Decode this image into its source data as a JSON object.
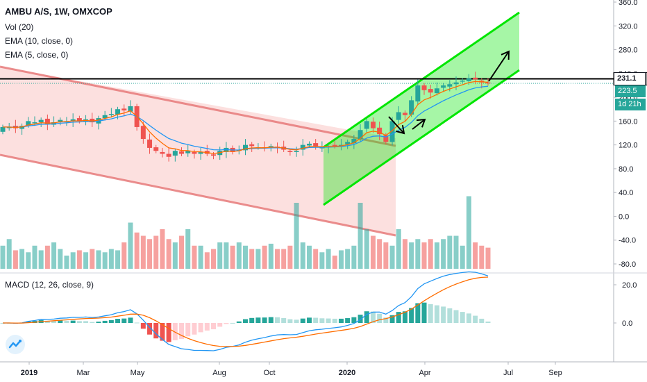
{
  "legend": {
    "title": "AMBU A/S, 1W, OMXCOP",
    "vol": "Vol (20)",
    "ema10": "EMA (10, close, 0)",
    "ema5": "EMA (5, close, 0)",
    "macd": "MACD (12, 26, close, 9)"
  },
  "badges": {
    "last": "231.1",
    "close": "223.5",
    "timer": "1d 21h"
  },
  "colors": {
    "up": "#26a69a",
    "down": "#ef5350",
    "ema_fast": "#ff6d00",
    "ema_slow": "#2196f3",
    "channel_up": "#00e600",
    "channel_down": "#e57373"
  },
  "chart_data": {
    "type": "line",
    "symbol": "AMBU A/S",
    "interval": "1W",
    "exchange": "OMXCOP",
    "price_axis_ticks": [
      "360.0",
      "320.0",
      "280.0",
      "240.0",
      "200.0",
      "160.0",
      "120.0",
      "80.0",
      "40.0",
      "0.0",
      "-40.0",
      "-80.0"
    ],
    "macd_axis_ticks": [
      "20.0",
      "0.0"
    ],
    "x_ticks": [
      "2019",
      "Mar",
      "May",
      "Aug",
      "Oct",
      "2020",
      "Apr",
      "Jul",
      "Sep"
    ],
    "horizontal_line": 231.1,
    "last_close": 223.5,
    "price_range": [
      -90,
      365
    ],
    "weekly_close": [
      150,
      150,
      148,
      152,
      160,
      158,
      162,
      155,
      158,
      162,
      160,
      163,
      160,
      163,
      158,
      165,
      170,
      172,
      180,
      178,
      185,
      150,
      130,
      115,
      110,
      105,
      100,
      110,
      105,
      110,
      105,
      108,
      105,
      102,
      110,
      115,
      108,
      112,
      120,
      118,
      116,
      115,
      118,
      116,
      112,
      108,
      110,
      120,
      122,
      118,
      116,
      118,
      118,
      120,
      125,
      130,
      145,
      160,
      148,
      138,
      125,
      160,
      175,
      170,
      195,
      220,
      212,
      208,
      215,
      220,
      222,
      225,
      228,
      232,
      230,
      225,
      223.5
    ],
    "weekly_volume": [
      0.35,
      0.45,
      0.28,
      0.3,
      0.25,
      0.35,
      0.28,
      0.35,
      0.4,
      0.3,
      0.2,
      0.25,
      0.28,
      0.25,
      0.3,
      0.28,
      0.25,
      0.3,
      0.28,
      0.4,
      0.7,
      0.55,
      0.5,
      0.45,
      0.5,
      0.6,
      0.45,
      0.4,
      0.5,
      0.6,
      0.35,
      0.35,
      0.25,
      0.3,
      0.4,
      0.4,
      0.35,
      0.4,
      0.35,
      0.3,
      0.3,
      0.35,
      0.38,
      0.3,
      0.3,
      0.35,
      1.0,
      0.4,
      0.35,
      0.3,
      0.25,
      0.3,
      0.2,
      0.28,
      0.3,
      0.35,
      1.0,
      0.6,
      0.5,
      0.45,
      0.4,
      0.35,
      0.6,
      0.45,
      0.4,
      0.45,
      0.4,
      0.45,
      0.4,
      0.45,
      0.5,
      0.5,
      0.35,
      1.1,
      0.4,
      0.35,
      0.32
    ],
    "macd_line_range": [
      -30,
      30
    ],
    "annotations": [
      "falling channel (red)",
      "rising channel (green)",
      "up arrow projection"
    ]
  }
}
